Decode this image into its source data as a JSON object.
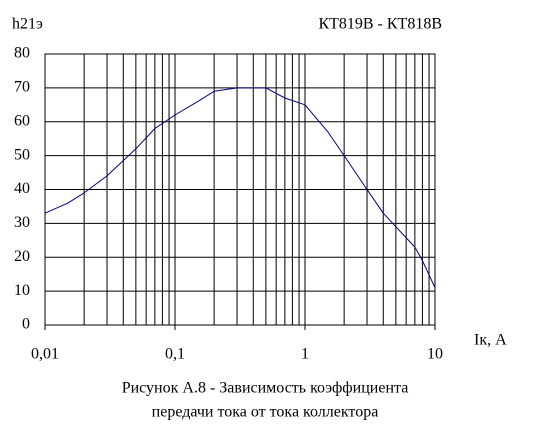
{
  "chart_data": {
    "type": "line",
    "title": "КТ819В - КТ818В",
    "ylabel": "h21э",
    "xlabel": "Iк, А",
    "caption": [
      "Рисунок А.8 - Зависимость коэффициента",
      "передачи тока от тока коллектора"
    ],
    "xscale": "log",
    "xlim": [
      0.01,
      10
    ],
    "xticks": [
      {
        "value": 0.01,
        "label": "0,01"
      },
      {
        "value": 0.1,
        "label": "0,1"
      },
      1,
      10
    ],
    "xminorticks": [
      0.02,
      0.03,
      0.04,
      0.05,
      0.06,
      0.07,
      0.08,
      0.09,
      0.2,
      0.3,
      0.4,
      0.5,
      0.6,
      0.7,
      0.8,
      0.9,
      2,
      3,
      4,
      5,
      6,
      7,
      8,
      9
    ],
    "ylim": [
      0,
      80
    ],
    "yticks": [
      0,
      10,
      20,
      30,
      40,
      50,
      60,
      70,
      80
    ],
    "grid": true,
    "x": [
      0.01,
      0.015,
      0.02,
      0.03,
      0.05,
      0.07,
      0.1,
      0.15,
      0.2,
      0.3,
      0.5,
      0.7,
      1,
      1.5,
      2,
      3,
      4,
      5,
      7,
      8,
      10
    ],
    "series": [
      {
        "color": "#000080",
        "values": [
          33,
          36,
          39,
          44,
          52,
          58,
          62,
          66,
          69,
          70,
          70,
          67,
          65,
          57,
          50,
          40,
          33,
          29,
          23,
          19,
          11
        ]
      }
    ]
  }
}
